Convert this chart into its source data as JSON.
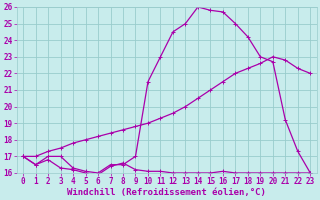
{
  "xlabel": "Windchill (Refroidissement éolien,°C)",
  "background_color": "#c8ecec",
  "line_color": "#aa00aa",
  "grid_color": "#99cccc",
  "xlim": [
    -0.5,
    23.5
  ],
  "ylim": [
    16,
    26
  ],
  "xticks": [
    0,
    1,
    2,
    3,
    4,
    5,
    6,
    7,
    8,
    9,
    10,
    11,
    12,
    13,
    14,
    15,
    16,
    17,
    18,
    19,
    20,
    21,
    22,
    23
  ],
  "yticks": [
    16,
    17,
    18,
    19,
    20,
    21,
    22,
    23,
    24,
    25,
    26
  ],
  "line1_x": [
    0,
    1,
    2,
    3,
    4,
    5,
    6,
    7,
    8,
    9,
    10,
    11,
    12,
    13,
    14,
    15,
    16,
    17,
    18,
    19,
    20,
    21,
    22,
    23
  ],
  "line1_y": [
    17.0,
    16.5,
    17.0,
    17.0,
    16.3,
    16.1,
    16.0,
    16.5,
    16.5,
    17.0,
    21.5,
    23.0,
    24.5,
    25.0,
    26.0,
    25.8,
    25.7,
    25.0,
    24.2,
    23.0,
    22.7,
    19.2,
    17.3,
    16.0
  ],
  "line2_x": [
    0,
    1,
    2,
    3,
    4,
    5,
    6,
    7,
    8,
    9,
    10,
    11,
    12,
    13,
    14,
    15,
    16,
    17,
    18,
    19,
    20,
    21,
    22,
    23
  ],
  "line2_y": [
    17.0,
    17.0,
    17.3,
    17.5,
    17.8,
    18.0,
    18.2,
    18.4,
    18.6,
    18.8,
    19.0,
    19.3,
    19.6,
    20.0,
    20.5,
    21.0,
    21.5,
    22.0,
    22.3,
    22.6,
    23.0,
    22.8,
    22.3,
    22.0
  ],
  "line3_x": [
    0,
    1,
    2,
    3,
    4,
    5,
    6,
    7,
    8,
    9,
    10,
    11,
    12,
    13,
    14,
    15,
    16,
    17,
    18,
    19,
    20,
    21,
    22,
    23
  ],
  "line3_y": [
    17.0,
    16.5,
    16.8,
    16.3,
    16.2,
    16.0,
    15.9,
    16.4,
    16.6,
    16.2,
    16.1,
    16.1,
    16.0,
    16.0,
    16.0,
    16.0,
    16.1,
    16.0,
    16.0,
    16.0,
    16.0,
    16.0,
    16.0,
    16.0
  ],
  "tick_fontsize": 5.5,
  "xlabel_fontsize": 6.5
}
